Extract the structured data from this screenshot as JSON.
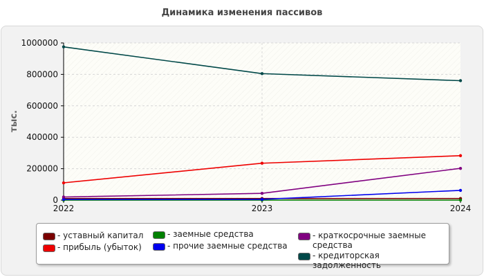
{
  "chart_data": {
    "type": "line",
    "title": "Динамика изменения пассивов",
    "ylabel": "тыс.",
    "xlabel": "",
    "x": [
      "2022",
      "2023",
      "2024"
    ],
    "ylim": [
      0,
      1000000
    ],
    "yticks": [
      0,
      200000,
      400000,
      600000,
      800000,
      1000000
    ],
    "grid": true,
    "legend_position": "bottom",
    "series": [
      {
        "name": "- уставный капитал",
        "color": "#7a0000",
        "values": [
          10000,
          10000,
          10000
        ]
      },
      {
        "name": "- прибыль (убыток)",
        "color": "#ee0000",
        "values": [
          110000,
          235000,
          283000
        ]
      },
      {
        "name": "- заемные средства",
        "color": "#008000",
        "values": [
          0,
          0,
          0
        ]
      },
      {
        "name": "- прочие заемные средства",
        "color": "#0000ee",
        "values": [
          5000,
          5000,
          62000
        ]
      },
      {
        "name": "- краткосрочные заемные средства",
        "color": "#800080",
        "values": [
          20000,
          43000,
          202000
        ]
      },
      {
        "name": "- кредиторская задолженность",
        "color": "#004848",
        "values": [
          975000,
          805000,
          760000
        ]
      }
    ]
  }
}
